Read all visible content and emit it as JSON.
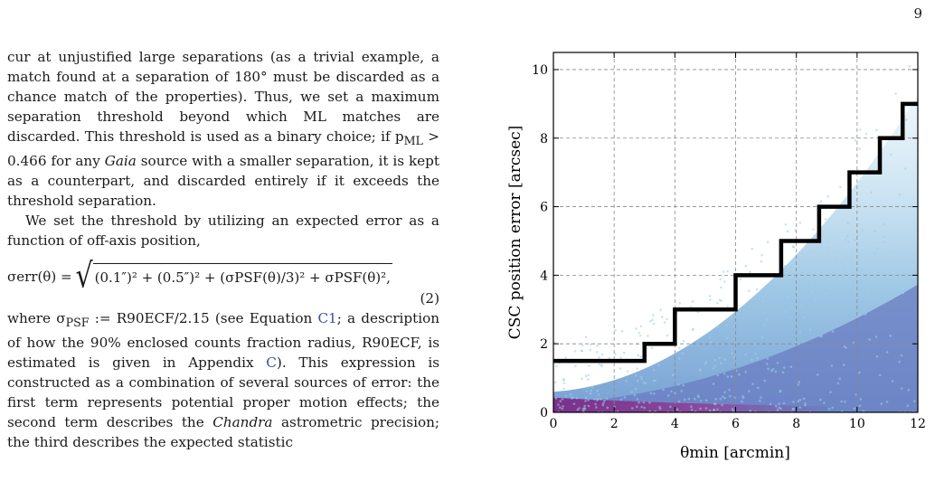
{
  "page_number": "9",
  "text": {
    "para1": "cur at unjustified large separations (as a trivial example, a match found at a separation of 180° must be discarded as a chance match of the properties). Thus, we set a maximum separation threshold beyond which ML matches are discarded. This threshold is used as a binary choice; if p",
    "para1_sub": "ML",
    "para1_b": " > 0.466 for any ",
    "para1_gaia": "Gaia",
    "para1_c": " source with a smaller separation, it is kept as a counterpart, and discarded entirely if it exceeds the threshold separation.",
    "para2": "We set the threshold by utilizing an expected error as a function of off-axis position,",
    "eq_lhs": "σerr(θ) =",
    "eq_rhs": "(0.1″)² + (0.5″)² + (σPSF(θ)/3)² + σPSF(θ)²,",
    "eq_number": "(2)",
    "para3_a": "where σ",
    "para3_sub": "PSF",
    "para3_b": " := R90ECF/2.15 (see Equation ",
    "para3_link1": "C1",
    "para3_c": "; a description of how the 90% enclosed counts fraction radius, R90ECF, is estimated is given in Appendix ",
    "para3_link2": "C",
    "para3_d": "). This expression is constructed as a combination of several sources of error: the first term represents potential proper motion effects; the second term describes the ",
    "para3_chandra": "Chandra",
    "para3_e": " astrometric precision; the third describes the expected statistic"
  },
  "chart_data": {
    "type": "heatmap",
    "xlabel": "θmin [arcmin]",
    "ylabel": "CSC position error [arcsec]",
    "xlim": [
      0,
      12
    ],
    "ylim": [
      0,
      10.5
    ],
    "xticks": [
      "0",
      "2",
      "4",
      "6",
      "8",
      "10",
      "12"
    ],
    "yticks": [
      "0",
      "2",
      "4",
      "6",
      "8",
      "10"
    ],
    "grid": true,
    "threshold_step": {
      "x": [
        0,
        3,
        3,
        4,
        4,
        6,
        6,
        7.5,
        7.5,
        8.75,
        8.75,
        9.75,
        9.75,
        10.75,
        10.75,
        11.5,
        11.5,
        12
      ],
      "y": [
        1.5,
        1.5,
        2,
        2,
        3,
        3,
        4,
        4,
        5,
        5,
        6,
        6,
        7,
        7,
        8,
        8,
        9,
        9
      ]
    },
    "density_colors": [
      "#d6eef6",
      "#7fb6dd",
      "#6a7cc2",
      "#7b2f8c"
    ]
  }
}
